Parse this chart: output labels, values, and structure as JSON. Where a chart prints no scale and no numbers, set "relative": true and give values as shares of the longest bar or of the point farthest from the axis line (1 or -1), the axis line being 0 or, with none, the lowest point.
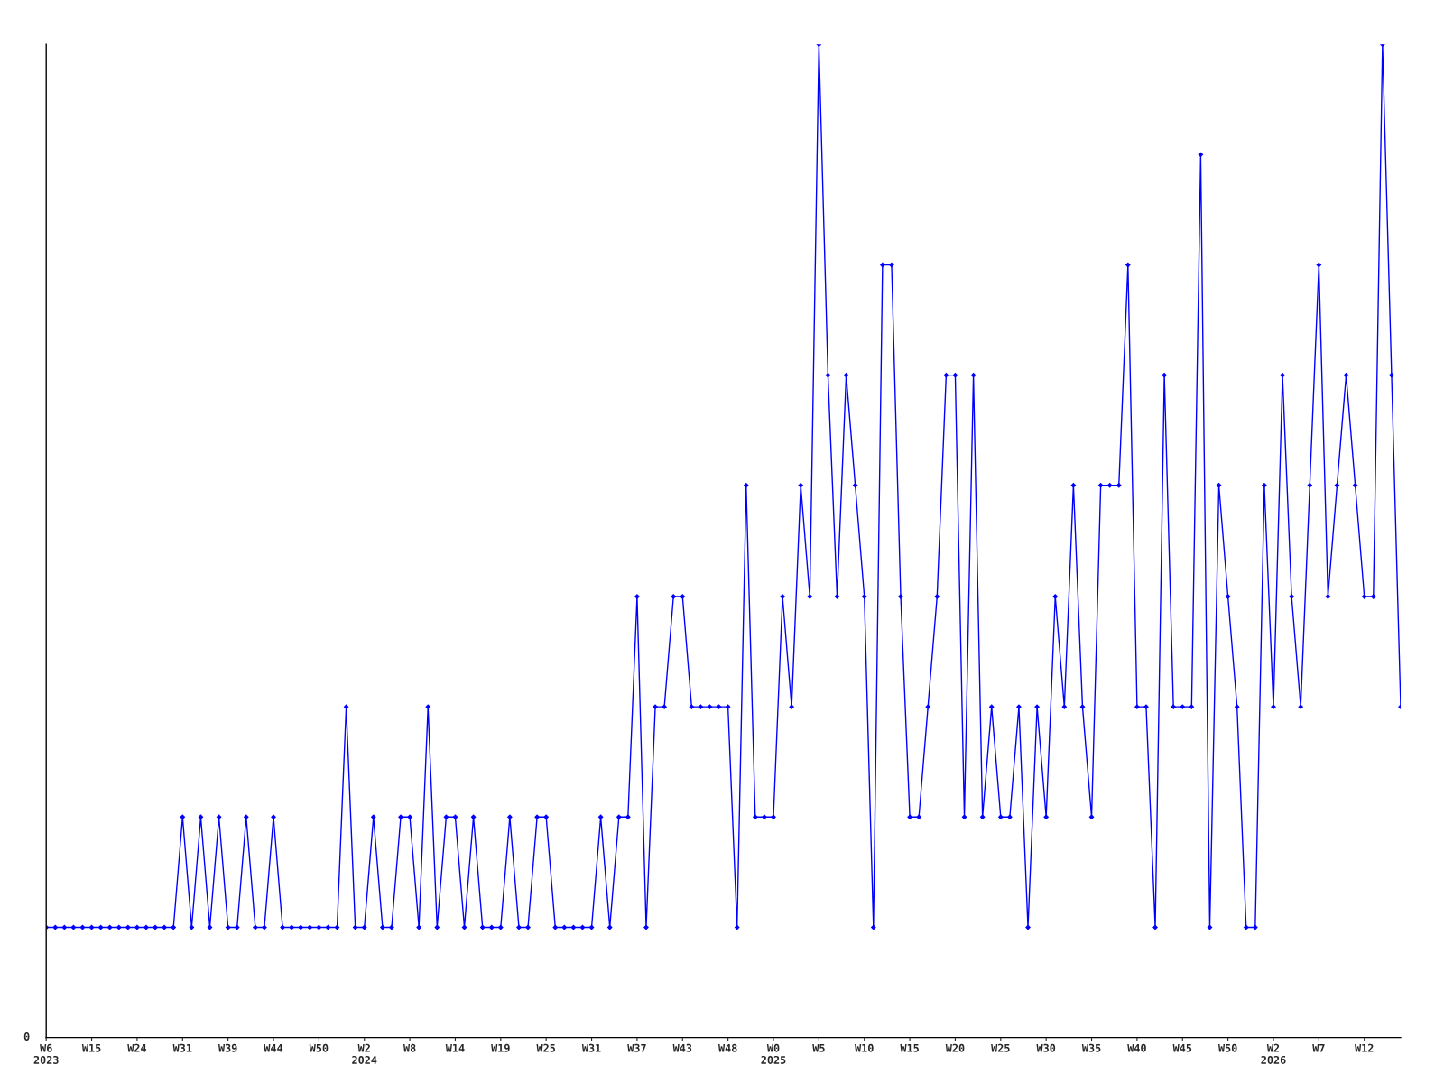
{
  "chart_data": {
    "type": "line",
    "relative": true,
    "marker": "diamond",
    "line_style": "solid",
    "grid": false,
    "legend": false,
    "annotations": [
      "0"
    ],
    "categories": [
      "W6\n2023",
      null,
      null,
      null,
      null,
      "W15",
      null,
      null,
      null,
      null,
      "W24",
      null,
      null,
      null,
      null,
      "W31",
      null,
      null,
      null,
      null,
      "W39",
      null,
      null,
      null,
      null,
      "W44",
      null,
      null,
      null,
      null,
      "W50",
      null,
      null,
      null,
      null,
      "W2\n2024",
      null,
      null,
      null,
      null,
      "W8",
      null,
      null,
      null,
      null,
      "W14",
      null,
      null,
      null,
      null,
      "W19",
      null,
      null,
      null,
      null,
      "W25",
      null,
      null,
      null,
      null,
      "W31",
      null,
      null,
      null,
      null,
      "W37",
      null,
      null,
      null,
      null,
      "W43",
      null,
      null,
      null,
      null,
      "W48",
      null,
      null,
      null,
      null,
      "W0\n2025",
      null,
      null,
      null,
      null,
      "W5",
      null,
      null,
      null,
      null,
      "W10",
      null,
      null,
      null,
      null,
      "W15",
      null,
      null,
      null,
      null,
      "W20",
      null,
      null,
      null,
      null,
      "W25",
      null,
      null,
      null,
      null,
      "W30",
      null,
      null,
      null,
      null,
      "W35",
      null,
      null,
      null,
      null,
      "W40",
      null,
      null,
      null,
      null,
      "W45",
      null,
      null,
      null,
      null,
      "W50",
      null,
      null,
      null,
      null,
      "W2\n2026",
      null,
      null,
      null,
      null,
      "W7",
      null,
      null,
      null,
      null,
      "W12",
      null,
      null,
      null,
      null
    ],
    "series": [
      {
        "color": "#0000ff",
        "values": [
          0.111,
          0.111,
          0.111,
          0.111,
          0.111,
          0.111,
          0.111,
          0.111,
          0.111,
          0.111,
          0.111,
          0.111,
          0.111,
          0.111,
          0.111,
          0.222,
          0.111,
          0.222,
          0.111,
          0.222,
          0.111,
          0.111,
          0.222,
          0.111,
          0.111,
          0.222,
          0.111,
          0.111,
          0.111,
          0.111,
          0.111,
          0.111,
          0.111,
          0.333,
          0.111,
          0.111,
          0.222,
          0.111,
          0.111,
          0.222,
          0.222,
          0.111,
          0.333,
          0.111,
          0.222,
          0.222,
          0.111,
          0.222,
          0.111,
          0.111,
          0.111,
          0.222,
          0.111,
          0.111,
          0.222,
          0.222,
          0.111,
          0.111,
          0.111,
          0.111,
          0.111,
          0.222,
          0.111,
          0.222,
          0.222,
          0.444,
          0.111,
          0.333,
          0.333,
          0.444,
          0.444,
          0.333,
          0.333,
          0.333,
          0.333,
          0.333,
          0.111,
          0.556,
          0.222,
          0.222,
          0.222,
          0.444,
          0.333,
          0.556,
          0.444,
          1,
          0.667,
          0.444,
          0.667,
          0.556,
          0.444,
          0.111,
          0.778,
          0.778,
          0.444,
          0.222,
          0.222,
          0.333,
          0.444,
          0.667,
          0.667,
          0.222,
          0.667,
          0.222,
          0.333,
          0.222,
          0.222,
          0.333,
          0.111,
          0.333,
          0.222,
          0.444,
          0.333,
          0.556,
          0.333,
          0.222,
          0.556,
          0.556,
          0.556,
          0.778,
          0.333,
          0.333,
          0.111,
          0.667,
          0.333,
          0.333,
          0.333,
          0.889,
          0.111,
          0.556,
          0.444,
          0.333,
          0.111,
          0.111,
          0.556,
          0.333,
          0.667,
          0.444,
          0.333,
          0.556,
          0.778,
          0.444,
          0.556,
          0.667,
          0.556,
          0.444,
          0.444,
          1,
          0.667,
          0.333
        ]
      }
    ]
  }
}
